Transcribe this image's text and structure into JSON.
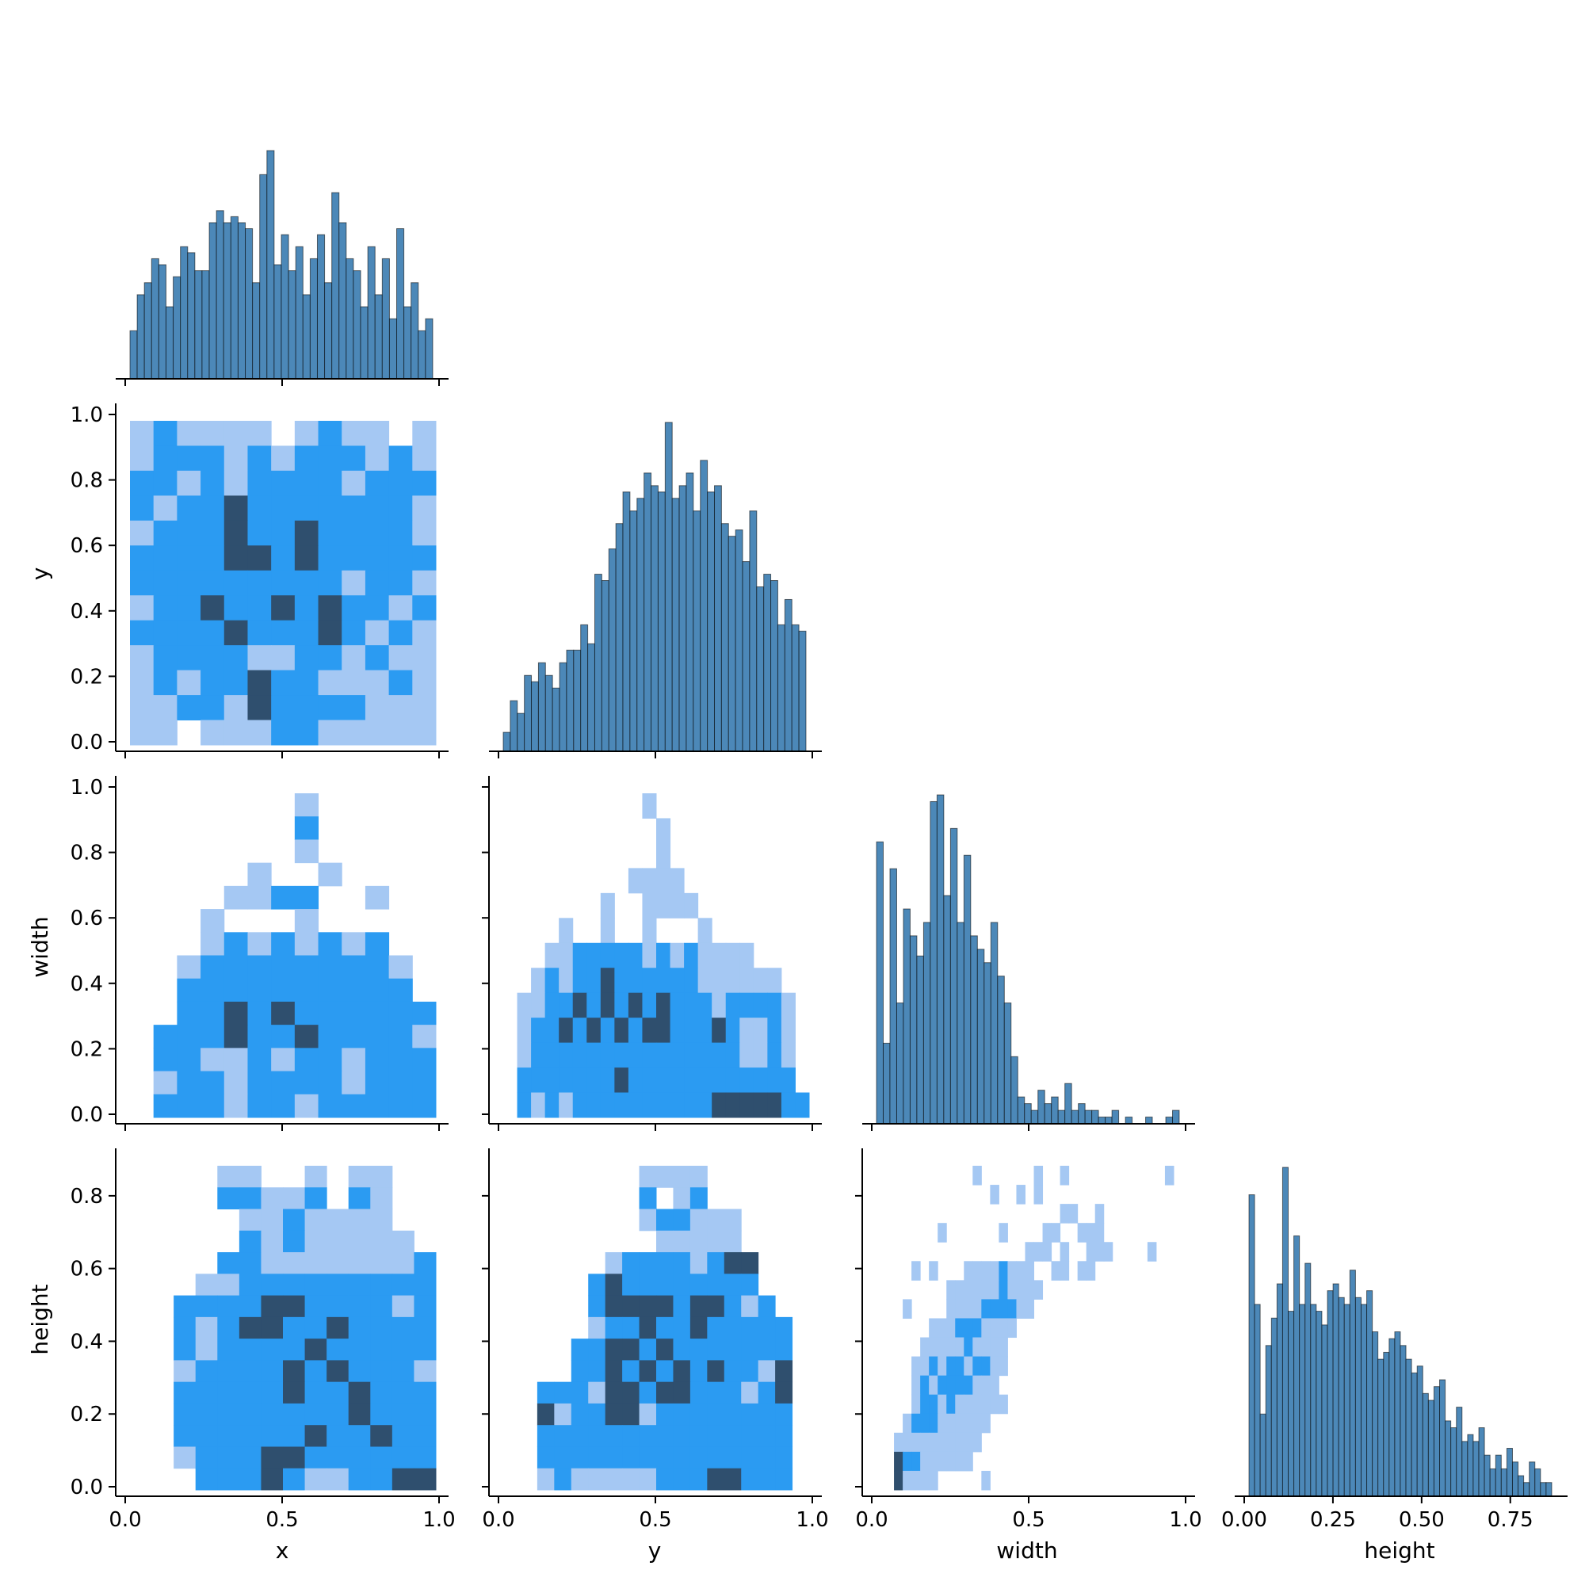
{
  "chart_data": {
    "type": "pairplot-corner",
    "variables": [
      "x",
      "y",
      "width",
      "height"
    ],
    "colors": {
      "hist_fill": "#4C88B8",
      "heat_light": "#A5C8F3",
      "heat_medium": "#2B9BF2",
      "heat_dark": "#2F4F6E"
    },
    "diagonal": [
      {
        "variable": "x",
        "bin_range": [
          0.0,
          1.0
        ],
        "counts": [
          8,
          14,
          16,
          20,
          19,
          12,
          17,
          22,
          21,
          18,
          18,
          26,
          28,
          26,
          27,
          26,
          25,
          16,
          34,
          38,
          19,
          24,
          18,
          22,
          14,
          20,
          24,
          16,
          31,
          26,
          20,
          18,
          12,
          22,
          14,
          20,
          10,
          25,
          12,
          16,
          8,
          10
        ]
      },
      {
        "variable": "y",
        "bin_range": [
          0.0,
          1.0
        ],
        "counts": [
          3,
          8,
          6,
          12,
          11,
          14,
          12,
          10,
          14,
          16,
          16,
          20,
          17,
          28,
          27,
          32,
          36,
          41,
          38,
          40,
          44,
          42,
          41,
          52,
          40,
          42,
          44,
          38,
          46,
          41,
          42,
          36,
          34,
          35,
          30,
          38,
          26,
          28,
          27,
          20,
          24,
          20,
          19
        ]
      },
      {
        "variable": "width",
        "bin_range": [
          0.0,
          1.0
        ],
        "counts": [
          42,
          12,
          38,
          18,
          32,
          28,
          25,
          30,
          48,
          49,
          34,
          44,
          30,
          40,
          28,
          26,
          24,
          30,
          22,
          18,
          10,
          4,
          3,
          2,
          5,
          3,
          4,
          2,
          6,
          2,
          3,
          2,
          2,
          1,
          1,
          2,
          0,
          1,
          0,
          0,
          1,
          0,
          0,
          1,
          2
        ]
      },
      {
        "variable": "height",
        "bin_range": [
          0.0,
          0.85
        ],
        "counts": [
          44,
          28,
          12,
          22,
          26,
          31,
          48,
          27,
          38,
          28,
          34,
          28,
          27,
          25,
          30,
          31,
          29,
          28,
          33,
          29,
          28,
          30,
          24,
          20,
          21,
          23,
          24,
          22,
          20,
          18,
          19,
          15,
          14,
          16,
          17,
          11,
          10,
          13,
          8,
          9,
          8,
          10,
          6,
          4,
          6,
          4,
          7,
          5,
          3,
          2,
          5,
          4,
          2,
          2
        ]
      }
    ],
    "heatmaps": [
      {
        "x_var": "x",
        "y_var": "y",
        "x_range": [
          0.0,
          1.0
        ],
        "y_range": [
          0.0,
          1.0
        ],
        "grid": [
          "LMLLLL LMLL L",
          "LMHHLHLMMMLML",
          "HHLHLMMMMLHHH",
          "MLMHDMHMHMMHL",
          "LHHMDHHDMHMML",
          "MMMHDDHDMHHMM",
          "MHMHMHHMHLMHL",
          "LMMDMMDMDMHLM",
          "MHHMDMMMDMLHL",
          "LMMMMLLMHLMLL",
          "LMLHHDHMLLLML",
          "LLMMLDHMHMLLL",
          "LL LLLMMLLLLL"
        ]
      },
      {
        "x_var": "x",
        "y_var": "width",
        "x_range": [
          0.0,
          1.0
        ],
        "y_range": [
          0.0,
          1.0
        ],
        "grid": [
          "       L     ",
          "       M     ",
          "       L     ",
          "     L  L    ",
          "    LLMM  L  ",
          "   L   L     ",
          "   LMLMLMLM  ",
          "  LMHMHMHMML ",
          "  MHHHMHHHHM ",
          "  HHDMDHMMHMH",
          " MMHDHMDHHMHL",
          " HMLLMLMHLMMM",
          " LHMLMMMMLHMH",
          " HMHLHMLMHMMM"
        ]
      },
      {
        "x_var": "y",
        "y_var": "width",
        "x_range": [
          0.0,
          1.0
        ],
        "y_range": [
          0.0,
          1.0
        ],
        "grid": [
          "          L           ",
          "           L          ",
          "           L          ",
          "         LLLL         ",
          "       L  LLLL        ",
          "    L  L  L   L       ",
          "   LLMMHMHLMLMLLLL    ",
          "  LMLMHDHMHHMMLLLLLL  ",
          " LLMMDHDMDHDHMHLMHHHL ",
          " LMHDHDMDHDDHMMDMLLML ",
          " LHMHMHHMHMHHMMHMLLML ",
          " MHHMHMMDMHHMMHMMHMMM ",
          " MLMLMHMHMHMHHMDDDDDHM"
        ]
      },
      {
        "x_var": "x",
        "y_var": "height",
        "x_range": [
          0.0,
          1.0
        ],
        "y_range": [
          0.0,
          0.85
        ],
        "grid": [
          "    LL  L LL  ",
          "    MMLLM ML  ",
          "     LLMLLLL  ",
          "     MLMLLLLL ",
          "    HMLLLLLLLM",
          "   LLMHMMHHMMM",
          "  MMMHDDMMMMLM",
          "  MLMDDHMDMMHM",
          "  HLMHHMDMMMMM",
          "  LHMMHDHDMMHL",
          "  HMMHMDHHDMMH",
          "  MHMMMHHMDMHM",
          "  MMMHHMDMHDHM",
          "  LMMHDDHHMHMM",
          "   MHHDMLLMHDD"
        ]
      },
      {
        "x_var": "y",
        "y_var": "height",
        "x_range": [
          0.0,
          1.0
        ],
        "y_range": [
          0.0,
          0.85
        ],
        "grid": [
          "        LLLL      ",
          "        M LM      ",
          "        LHHLLL    ",
          "         LLLLL    ",
          "      LMMHMLHDD   ",
          "     MDMMMMMMMM   ",
          "     HDDDDMDDMLM  ",
          "     LMHDHHDHMHHH ",
          "    MMDDMDHHMMHMM ",
          "    HHDHDHDHDMHLD ",
          "  MMHLDDMDDMHMLMD ",
          "  DLHMDDLHMMHMMHM ",
          "  HMMHMHMHMMMMMHM ",
          "  HMMMMMHHMMMHMHM ",
          "  LMLLLLLMMMDDMMH "
        ]
      },
      {
        "x_var": "width",
        "y_var": "height",
        "x_range": [
          0.0,
          1.0
        ],
        "y_range": [
          0.0,
          0.85
        ],
        "grid": [
          "           L      L  L           L",
          "             L  L L               ",
          "                     LL  L        ",
          "       L      L    LL  LLL        ",
          "                 LLL L  LLL    L  ",
          "    L L   LLLLMLLL  LL LL         ",
          "        LLLLLLMLLLL                ",
          "   L    LLLLMMMMLL                ",
          "      LLLMMMLLLL                 ",
          "     LLLLLMLLLL                  ",
          "    LLMLMMLMMLL                  ",
          "    LMLMHMMLLL                   ",
          "    LMMLMLLLLLL                  ",
          "   LMMMLLLLLL                    ",
          "  LLLLLLLLLL                     ",
          "  DMHLLLLLL                      ",
          "  DLLLL     L                    "
        ]
      }
    ]
  }
}
